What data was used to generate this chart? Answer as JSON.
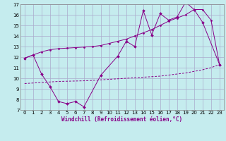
{
  "xlabel": "Windchill (Refroidissement éolien,°C)",
  "bg_color": "#c5ecee",
  "line_color": "#880088",
  "grid_color": "#aaaacc",
  "xlim": [
    -0.5,
    23.5
  ],
  "ylim": [
    7,
    17
  ],
  "xticks": [
    0,
    1,
    2,
    3,
    4,
    5,
    6,
    7,
    8,
    9,
    10,
    11,
    12,
    13,
    14,
    15,
    16,
    17,
    18,
    19,
    20,
    21,
    22,
    23
  ],
  "yticks": [
    7,
    8,
    9,
    10,
    11,
    12,
    13,
    14,
    15,
    16,
    17
  ],
  "series1_x": [
    0,
    1,
    2,
    3,
    4,
    5,
    6,
    7,
    9,
    11,
    12,
    13,
    14,
    15,
    16,
    17,
    18,
    19,
    20,
    21,
    23
  ],
  "series1_y": [
    11.9,
    12.2,
    10.4,
    9.2,
    7.8,
    7.6,
    7.8,
    7.3,
    10.3,
    12.1,
    13.5,
    13.0,
    16.4,
    14.1,
    16.1,
    15.5,
    15.8,
    17.2,
    16.5,
    15.3,
    11.3
  ],
  "series2_x": [
    0,
    1,
    2,
    3,
    4,
    5,
    6,
    7,
    8,
    9,
    10,
    11,
    12,
    13,
    14,
    15,
    16,
    17,
    18,
    19,
    20,
    21,
    22,
    23
  ],
  "series2_y": [
    11.9,
    12.2,
    12.5,
    12.7,
    12.8,
    12.85,
    12.9,
    12.95,
    13.0,
    13.1,
    13.3,
    13.5,
    13.7,
    14.0,
    14.3,
    14.6,
    15.0,
    15.4,
    15.7,
    16.0,
    16.5,
    16.5,
    15.5,
    11.3
  ],
  "series3_x": [
    0,
    1,
    2,
    3,
    4,
    5,
    6,
    7,
    8,
    9,
    10,
    11,
    12,
    13,
    14,
    15,
    16,
    17,
    18,
    19,
    20,
    21,
    22,
    23
  ],
  "series3_y": [
    9.5,
    9.55,
    9.6,
    9.65,
    9.7,
    9.72,
    9.74,
    9.76,
    9.8,
    9.85,
    9.9,
    9.95,
    10.0,
    10.05,
    10.1,
    10.15,
    10.2,
    10.3,
    10.4,
    10.5,
    10.65,
    10.8,
    11.0,
    11.3
  ]
}
